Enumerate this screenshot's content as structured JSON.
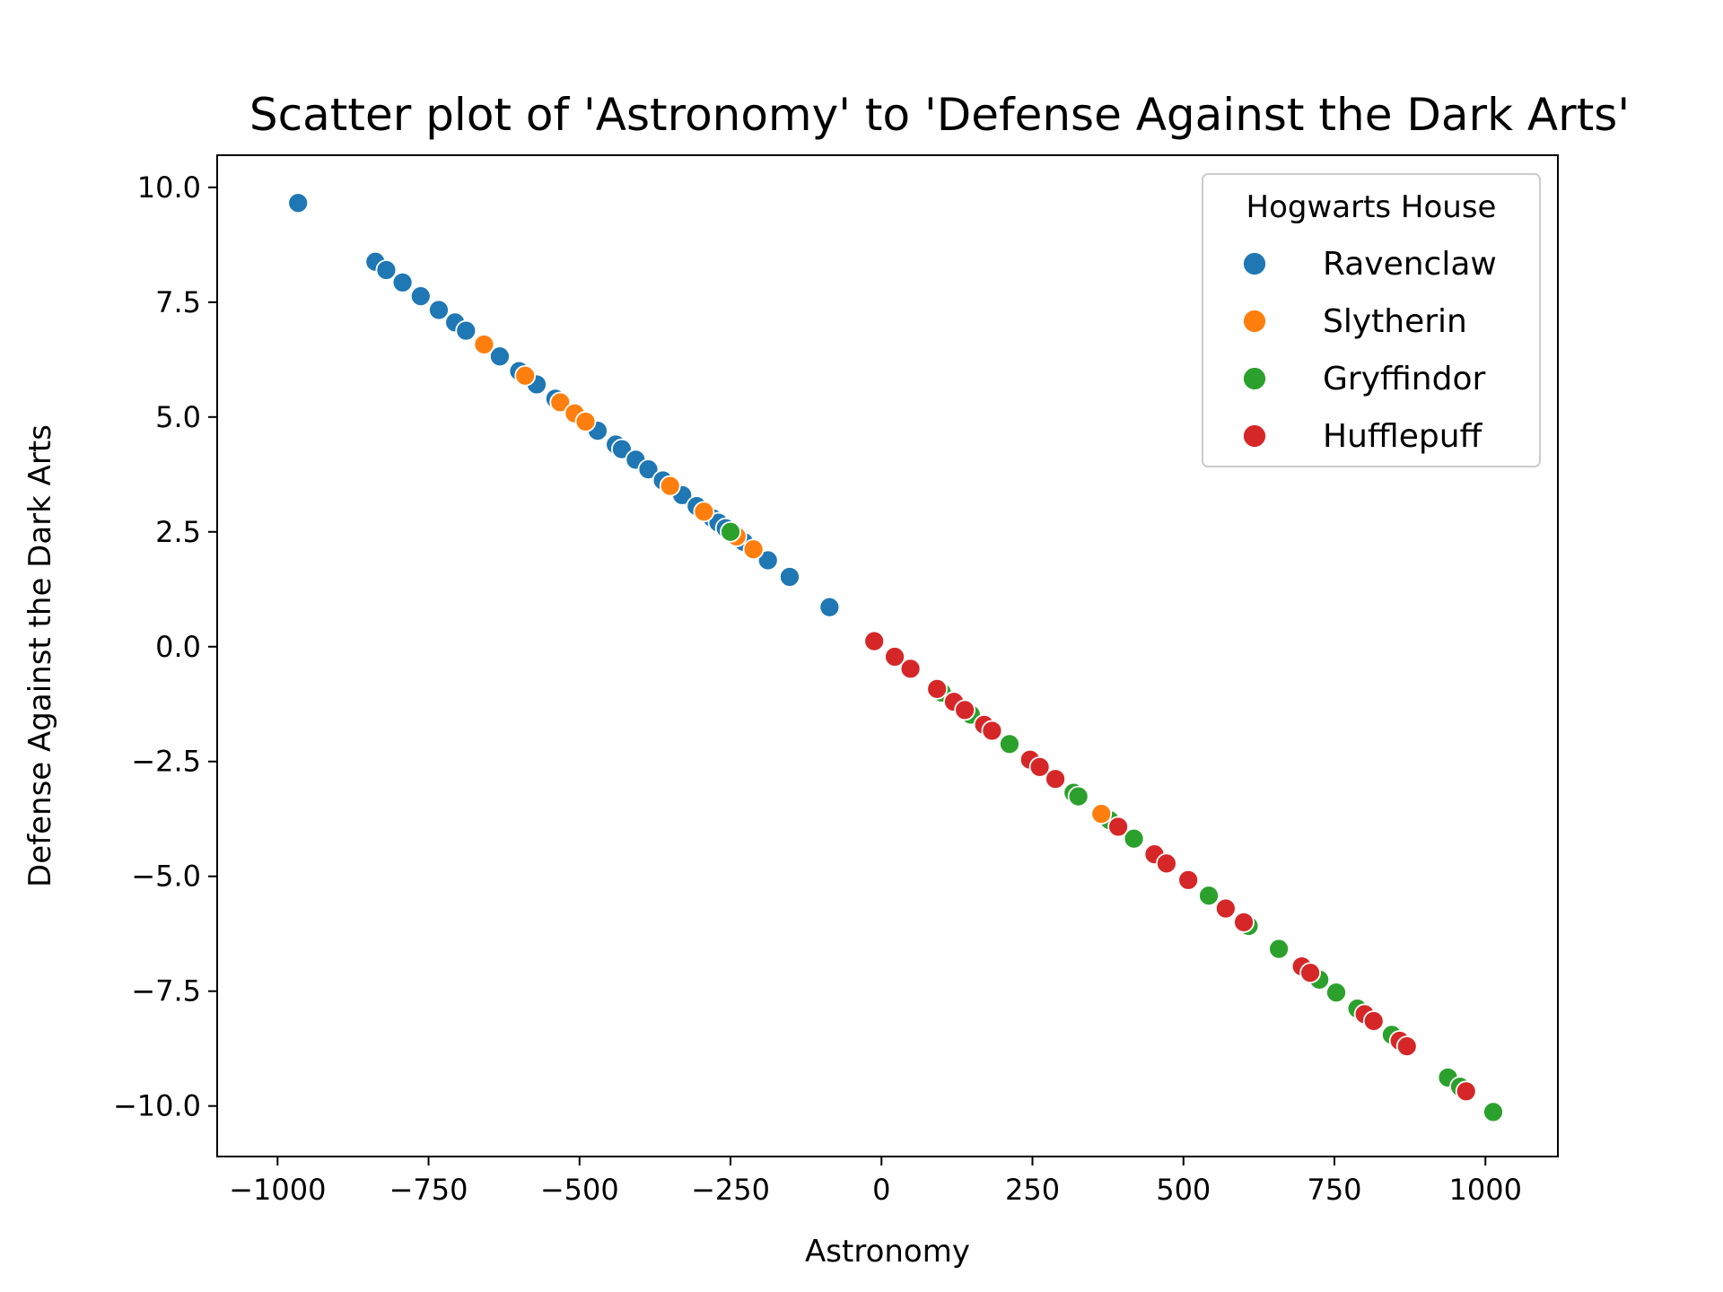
{
  "chart_data": {
    "type": "scatter",
    "title": "Scatter plot of 'Astronomy' to 'Defense Against the Dark Arts'",
    "xlabel": "Astronomy",
    "ylabel": "Defense Against the Dark Arts",
    "xlim": [
      -1100,
      1120
    ],
    "ylim": [
      -11.1,
      10.7
    ],
    "xticks": [
      -1000,
      -750,
      -500,
      -250,
      0,
      250,
      500,
      750,
      1000
    ],
    "xtick_labels": [
      "−1000",
      "−750",
      "−500",
      "−250",
      "0",
      "250",
      "500",
      "750",
      "1000"
    ],
    "yticks": [
      10.0,
      7.5,
      5.0,
      2.5,
      0.0,
      -2.5,
      -5.0,
      -7.5,
      -10.0
    ],
    "ytick_labels": [
      "10.0",
      "7.5",
      "5.0",
      "2.5",
      "0.0",
      "−2.5",
      "−5.0",
      "−7.5",
      "−10.0"
    ],
    "grid": false,
    "legend": {
      "title": "Hogwarts House",
      "position": "top-right"
    },
    "series": [
      {
        "name": "Ravenclaw",
        "color": "#1f77b4",
        "x": [
          -966,
          -838,
          -820,
          -793,
          -763,
          -733,
          -706,
          -688,
          -632,
          -600,
          -571,
          -540,
          -470,
          -440,
          -430,
          -407,
          -386,
          -362,
          -330,
          -306,
          -280,
          -270,
          -258,
          -228,
          -188,
          -152,
          -86
        ],
        "y": [
          9.66,
          8.38,
          8.2,
          7.93,
          7.63,
          7.33,
          7.06,
          6.88,
          6.32,
          6.0,
          5.71,
          5.4,
          4.7,
          4.4,
          4.3,
          4.07,
          3.86,
          3.62,
          3.3,
          3.06,
          2.8,
          2.7,
          2.58,
          2.28,
          1.88,
          1.52,
          0.86
        ]
      },
      {
        "name": "Slytherin",
        "color": "#ff7f0e",
        "x": [
          -658,
          -590,
          -532,
          -508,
          -490,
          -350,
          -294,
          -240,
          -212
        ],
        "y": [
          6.58,
          5.9,
          5.32,
          5.08,
          4.9,
          3.5,
          2.94,
          2.4,
          2.12
        ]
      },
      {
        "name": "Gryffindor",
        "color": "#2ca02c",
        "x": [
          -250,
          100,
          148,
          212,
          318,
          326,
          378,
          418,
          542,
          608,
          658,
          725,
          753,
          788,
          845,
          938,
          958,
          1013
        ],
        "y": [
          2.5,
          -1.0,
          -1.48,
          -2.12,
          -3.18,
          -3.26,
          -3.78,
          -4.18,
          -5.42,
          -6.08,
          -6.58,
          -7.25,
          -7.53,
          -7.88,
          -8.45,
          -9.38,
          -9.58,
          -10.13
        ]
      },
      {
        "name": "Hufflepuff",
        "color": "#d62728",
        "x": [
          -12,
          22,
          48,
          92,
          120,
          138,
          170,
          183,
          246,
          262,
          288,
          392,
          452,
          472,
          508,
          570,
          600,
          696,
          710,
          800,
          815,
          858,
          870,
          968
        ],
        "y": [
          0.12,
          -0.22,
          -0.48,
          -0.92,
          -1.2,
          -1.38,
          -1.7,
          -1.83,
          -2.46,
          -2.62,
          -2.88,
          -3.92,
          -4.52,
          -4.72,
          -5.08,
          -5.7,
          -6.0,
          -6.96,
          -7.1,
          -8.0,
          -8.15,
          -8.58,
          -8.7,
          -9.68
        ]
      },
      {
        "name": "Slytherin",
        "color": "#ff7f0e",
        "x": [
          364
        ],
        "y": [
          -3.64
        ]
      }
    ]
  }
}
